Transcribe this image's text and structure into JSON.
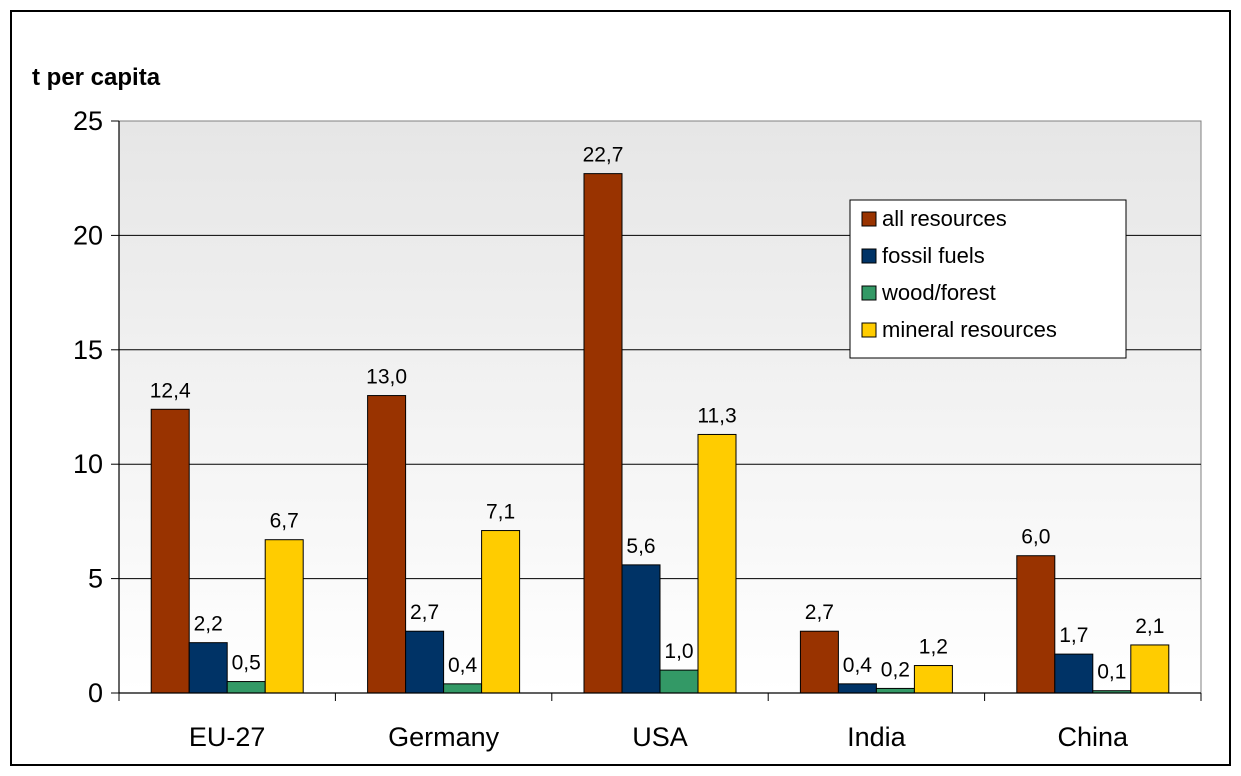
{
  "chart_data": {
    "type": "bar",
    "ylabel": "t per capita",
    "ylim": [
      0,
      25
    ],
    "yticks": [
      0,
      5,
      10,
      15,
      20,
      25
    ],
    "categories": [
      "EU-27",
      "Germany",
      "USA",
      "India",
      "China"
    ],
    "series": [
      {
        "name": "all resources",
        "color": "#993300",
        "values": [
          12.4,
          13.0,
          22.7,
          2.7,
          6.0
        ],
        "labels": [
          "12,4",
          "13,0",
          "22,7",
          "2,7",
          "6,0"
        ]
      },
      {
        "name": "fossil fuels",
        "color": "#003366",
        "values": [
          2.2,
          2.7,
          5.6,
          0.4,
          1.7
        ],
        "labels": [
          "2,2",
          "2,7",
          "5,6",
          "0,4",
          "1,7"
        ]
      },
      {
        "name": "wood/forest",
        "color": "#339966",
        "values": [
          0.5,
          0.4,
          1.0,
          0.2,
          0.1
        ],
        "labels": [
          "0,5",
          "0,4",
          "1,0",
          "0,2",
          "0,1"
        ]
      },
      {
        "name": "mineral resources",
        "color": "#FFCC00",
        "values": [
          6.7,
          7.1,
          11.3,
          1.2,
          2.1
        ],
        "labels": [
          "6,7",
          "7,1",
          "11,3",
          "1,2",
          "2,1"
        ]
      }
    ],
    "grid": true,
    "legend_position": "top-right"
  }
}
